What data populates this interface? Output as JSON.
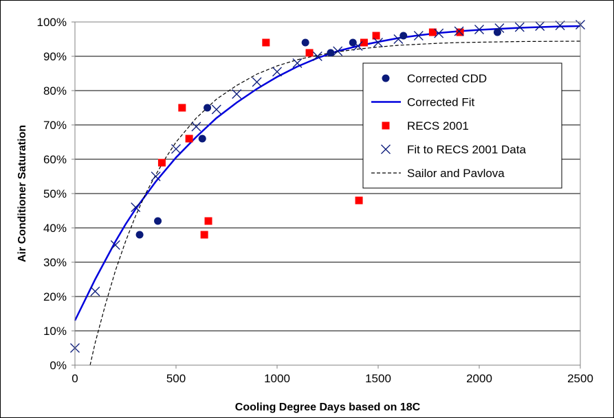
{
  "chart_data": {
    "type": "scatter",
    "title": "",
    "xlabel": "Cooling Degree Days based on 18C",
    "ylabel": "Air Conditioner Saturation",
    "xlim": [
      0,
      2500
    ],
    "ylim": [
      0,
      100
    ],
    "x_ticks": [
      0,
      500,
      1000,
      1500,
      2000,
      2500
    ],
    "x_tick_labels": [
      "0",
      "500",
      "1000",
      "1500",
      "2000",
      "2500"
    ],
    "y_ticks": [
      0,
      10,
      20,
      30,
      40,
      50,
      60,
      70,
      80,
      90,
      100
    ],
    "y_tick_labels": [
      "0%",
      "10%",
      "20%",
      "30%",
      "40%",
      "50%",
      "60%",
      "70%",
      "80%",
      "90%",
      "100%"
    ],
    "grid": "horizontal",
    "legend_position": "right",
    "colors": {
      "navy": "#0a1a7a",
      "blue": "#0000dd",
      "red": "#ff0000",
      "black": "#000000"
    },
    "series": [
      {
        "name": "Corrected CDD",
        "kind": "marker-circle",
        "color": "#0a1a7a",
        "points": [
          [
            320,
            38
          ],
          [
            410,
            42
          ],
          [
            630,
            66
          ],
          [
            655,
            75
          ],
          [
            1140,
            94
          ],
          [
            1265,
            91
          ],
          [
            1375,
            94
          ],
          [
            1625,
            96
          ],
          [
            2090,
            97
          ]
        ]
      },
      {
        "name": "Corrected Fit",
        "kind": "line-solid",
        "color": "#0000dd",
        "points": [
          [
            0,
            13
          ],
          [
            50,
            19
          ],
          [
            100,
            25
          ],
          [
            150,
            30.5
          ],
          [
            200,
            36
          ],
          [
            250,
            41
          ],
          [
            300,
            45.5
          ],
          [
            400,
            53.5
          ],
          [
            500,
            60.5
          ],
          [
            600,
            66.5
          ],
          [
            700,
            72
          ],
          [
            800,
            76.5
          ],
          [
            900,
            80.5
          ],
          [
            1000,
            84
          ],
          [
            1100,
            87
          ],
          [
            1200,
            89.5
          ],
          [
            1300,
            91.5
          ],
          [
            1400,
            93
          ],
          [
            1500,
            94.2
          ],
          [
            1600,
            95.3
          ],
          [
            1700,
            96.1
          ],
          [
            1800,
            96.8
          ],
          [
            1900,
            97.3
          ],
          [
            2000,
            97.7
          ],
          [
            2100,
            98
          ],
          [
            2200,
            98.3
          ],
          [
            2300,
            98.5
          ],
          [
            2400,
            98.7
          ],
          [
            2500,
            98.8
          ]
        ]
      },
      {
        "name": "RECS 2001",
        "kind": "marker-square",
        "color": "#ff0000",
        "points": [
          [
            430,
            59
          ],
          [
            530,
            75
          ],
          [
            565,
            66
          ],
          [
            640,
            38
          ],
          [
            660,
            42
          ],
          [
            945,
            94
          ],
          [
            1160,
            91
          ],
          [
            1405,
            48
          ],
          [
            1430,
            94
          ],
          [
            1490,
            96
          ],
          [
            1770,
            97
          ],
          [
            1905,
            97
          ]
        ]
      },
      {
        "name": "Fit to RECS 2001 Data",
        "kind": "marker-x",
        "color": "#0a1a7a",
        "points": [
          [
            0,
            5
          ],
          [
            100,
            21.5
          ],
          [
            200,
            35
          ],
          [
            300,
            46
          ],
          [
            400,
            55
          ],
          [
            500,
            63
          ],
          [
            600,
            69.5
          ],
          [
            700,
            74.5
          ],
          [
            800,
            79
          ],
          [
            900,
            82.5
          ],
          [
            1000,
            85.5
          ],
          [
            1100,
            88
          ],
          [
            1200,
            90
          ],
          [
            1300,
            91.5
          ],
          [
            1400,
            93
          ],
          [
            1500,
            94
          ],
          [
            1600,
            95
          ],
          [
            1700,
            96
          ],
          [
            1800,
            96.7
          ],
          [
            1900,
            97.3
          ],
          [
            2000,
            97.8
          ],
          [
            2100,
            98.2
          ],
          [
            2200,
            98.5
          ],
          [
            2300,
            98.8
          ],
          [
            2400,
            99
          ],
          [
            2500,
            99.2
          ]
        ]
      },
      {
        "name": "Sailor and Pavlova",
        "kind": "line-dashed",
        "color": "#000000",
        "points": [
          [
            75,
            0
          ],
          [
            100,
            6.5
          ],
          [
            150,
            17.5
          ],
          [
            200,
            27.5
          ],
          [
            250,
            36
          ],
          [
            300,
            43.5
          ],
          [
            350,
            50
          ],
          [
            400,
            55.5
          ],
          [
            450,
            60.5
          ],
          [
            500,
            65
          ],
          [
            600,
            72
          ],
          [
            700,
            77.5
          ],
          [
            800,
            81.5
          ],
          [
            900,
            84.8
          ],
          [
            1000,
            87.2
          ],
          [
            1100,
            89
          ],
          [
            1200,
            90.3
          ],
          [
            1300,
            91.3
          ],
          [
            1400,
            92.1
          ],
          [
            1500,
            92.7
          ],
          [
            1600,
            93.2
          ],
          [
            1700,
            93.5
          ],
          [
            1800,
            93.8
          ],
          [
            1900,
            94
          ],
          [
            2000,
            94.1
          ],
          [
            2200,
            94.3
          ],
          [
            2500,
            94.4
          ]
        ]
      }
    ]
  }
}
